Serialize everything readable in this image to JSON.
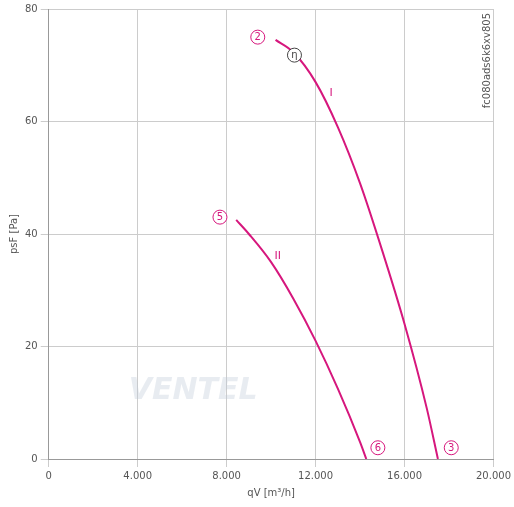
{
  "chart_data": {
    "type": "line",
    "x_label": "qV [m³/h]",
    "y_label": "psF [Pa]",
    "side_text": "fc080ads6k6xv805",
    "watermark": "VENTEL",
    "xlim": [
      0,
      20000
    ],
    "xticks": [
      0,
      {
        "value": 4000,
        "label": "4.000"
      },
      {
        "value": 8000,
        "label": "8.000"
      },
      {
        "value": 12000,
        "label": "12.000"
      },
      {
        "value": 16000,
        "label": "16.000"
      },
      {
        "value": 20000,
        "label": "20.000"
      }
    ],
    "ylim": [
      0,
      80
    ],
    "yticks": [
      0,
      20,
      40,
      60,
      80
    ],
    "grid": true,
    "series": [
      {
        "name": "I",
        "color": "#d6177d",
        "label_at": [
          12700,
          65
        ],
        "x": [
          10200,
          11000,
          12000,
          13000,
          14000,
          15000,
          16000,
          17000,
          17500
        ],
        "values": [
          74.5,
          72.3,
          67,
          59,
          49,
          37,
          24,
          9,
          0
        ]
      },
      {
        "name": "II",
        "color": "#d6177d",
        "label_at": [
          10300,
          36
        ],
        "x": [
          8430,
          9000,
          10000,
          11000,
          12000,
          13000,
          14000,
          14280
        ],
        "values": [
          42.5,
          40,
          35,
          28.5,
          21,
          12.5,
          3,
          0
        ]
      }
    ],
    "annotations": [
      {
        "text": "2",
        "x": 9400,
        "y": 75,
        "marker": "circle",
        "color": "#d6177d"
      },
      {
        "text": "3",
        "x": 18100,
        "y": 2,
        "marker": "circle",
        "color": "#d6177d"
      },
      {
        "text": "5",
        "x": 7700,
        "y": 43,
        "marker": "circle",
        "color": "#d6177d"
      },
      {
        "text": "6",
        "x": 14800,
        "y": 2,
        "marker": "circle",
        "color": "#d6177d"
      },
      {
        "text": "η",
        "x": 11050,
        "y": 71.8,
        "marker": "circle",
        "color": "#444444"
      }
    ]
  }
}
